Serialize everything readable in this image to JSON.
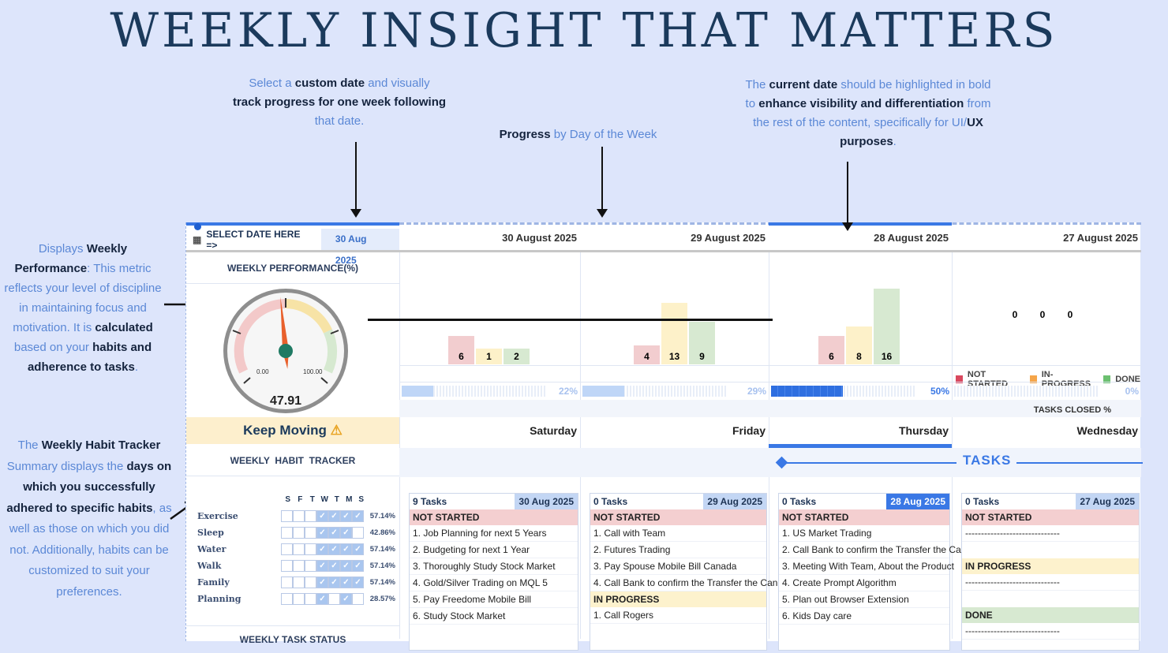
{
  "title": "WEEKLY INSIGHT THAT MATTERS",
  "notes": {
    "custom_date": {
      "p1": "Select a ",
      "b1": "custom date",
      "p2": " and visually ",
      "b2": "track progress for one week following",
      "p3": "that date."
    },
    "progress": {
      "b1": "Progress",
      "p1": " by Day of the Week"
    },
    "current_date": {
      "p1": "The ",
      "b1": "current date",
      "p2": " should be highlighted in bold to ",
      "b2": "enhance visibility and differentiation",
      "p3": " from the rest of the content, specifically for UI/",
      "b3": "UX purposes",
      "p4": "."
    },
    "weekly_perf": {
      "p1": "Displays ",
      "b1": "Weekly Performance",
      "p2": ": This metric reflects your level of discipline in maintaining focus and motivation. It is ",
      "b2": "calculated",
      "p3": " based on your ",
      "b3": "habits and adherence to tasks",
      "p4": "."
    },
    "habit_tracker": {
      "p1": "The ",
      "b1": "Weekly Habit Tracker",
      "p2": " Summary displays the ",
      "b2": "days on which you successfully adhered to specific habits",
      "p3": ", as well as those on which you did not. Additionally, habits can be customized to suit your preferences."
    }
  },
  "sheet": {
    "select_label": "SELECT DATE HERE =>",
    "selected_date": "30 Aug 2025",
    "weekly_perf_label": "WEEKLY PERFORMANCE(%)",
    "gauge": {
      "value": "47.91",
      "min": "0.00",
      "max": "100.00",
      "percent": 47.91
    },
    "keep_moving": "Keep Moving",
    "habit_label": "WEEKLY  HABIT  TRACKER",
    "task_status_label": "WEEKLY TASK STATUS",
    "tasks_banner": "TASKS",
    "tasks_closed_label": "TASKS CLOSED %",
    "legend": [
      "NOT STARTED",
      "IN-PROGRESS",
      "DONE"
    ],
    "colors": {
      "not_started": "#d9485f",
      "in_progress": "#f5a54a",
      "done": "#6cc070",
      "accent": "#3a78e5"
    },
    "habit_days": [
      "S",
      "F",
      "T",
      "W",
      "T",
      "M",
      "S"
    ],
    "habits": [
      {
        "name": "Exercise",
        "pct": "57.14%",
        "days": [
          0,
          0,
          0,
          1,
          1,
          1,
          1
        ]
      },
      {
        "name": "Sleep",
        "pct": "42.86%",
        "days": [
          0,
          0,
          0,
          1,
          1,
          1,
          0
        ]
      },
      {
        "name": "Water",
        "pct": "57.14%",
        "days": [
          0,
          0,
          0,
          1,
          1,
          1,
          1
        ]
      },
      {
        "name": "Walk",
        "pct": "57.14%",
        "days": [
          0,
          0,
          0,
          1,
          1,
          1,
          1
        ]
      },
      {
        "name": "Family",
        "pct": "57.14%",
        "days": [
          0,
          0,
          0,
          1,
          1,
          1,
          1
        ]
      },
      {
        "name": "Planning",
        "pct": "28.57%",
        "days": [
          0,
          0,
          0,
          1,
          0,
          1,
          0
        ]
      }
    ],
    "days": [
      {
        "date": "30 August 2025",
        "day": "Saturday",
        "short": "30 Aug 2025",
        "closed": "22%",
        "closed_val": 22,
        "ns": 6,
        "ip": 1,
        "dn": 2,
        "tasks_count": "9 Tasks",
        "current": false,
        "not_started": [
          "1. Job Planning for next 5 Years",
          "2. Budgeting for next 1 Year",
          "3. Thoroughly Study Stock Market",
          "4. Gold/Silver Trading on MQL 5",
          "5. Pay Freedome Mobile Bill",
          "6. Study Stock Market"
        ],
        "in_progress": [],
        "done": []
      },
      {
        "date": "29 August 2025",
        "day": "Friday",
        "short": "29 Aug 2025",
        "closed": "29%",
        "closed_val": 29,
        "ns": 4,
        "ip": 13,
        "dn": 9,
        "tasks_count": "0 Tasks",
        "current": false,
        "not_started": [
          "1. Call with Team",
          "2. Futures Trading",
          "3. Pay Spouse Mobile Bill Canada",
          "4. Call Bank to confirm the Transfer the Can"
        ],
        "in_progress": [
          "1. Call Rogers"
        ],
        "done": []
      },
      {
        "date": "28 August 2025",
        "day": "Thursday",
        "short": "28 Aug 2025",
        "closed": "50%",
        "closed_val": 50,
        "ns": 6,
        "ip": 8,
        "dn": 16,
        "tasks_count": "0 Tasks",
        "current": true,
        "not_started": [
          "1. US Market Trading",
          "2. Call Bank to confirm the Transfer the Ca",
          "3. Meeting With Team, About the Product",
          "4. Create Prompt Algorithm",
          "5. Plan out Browser Extension",
          "6. Kids Day care"
        ],
        "in_progress": [],
        "done": []
      },
      {
        "date": "27 August 2025",
        "day": "Wednesday",
        "short": "27 Aug 2025",
        "closed": "0%",
        "closed_val": 0,
        "ns": 0,
        "ip": 0,
        "dn": 0,
        "tasks_count": "0 Tasks",
        "current": false,
        "not_started": [
          "------------------------------"
        ],
        "in_progress": [
          "------------------------------"
        ],
        "done": [
          "------------------------------"
        ]
      }
    ],
    "section_labels": {
      "ns": "NOT STARTED",
      "ip": "IN PROGRESS",
      "dn": "DONE"
    }
  }
}
